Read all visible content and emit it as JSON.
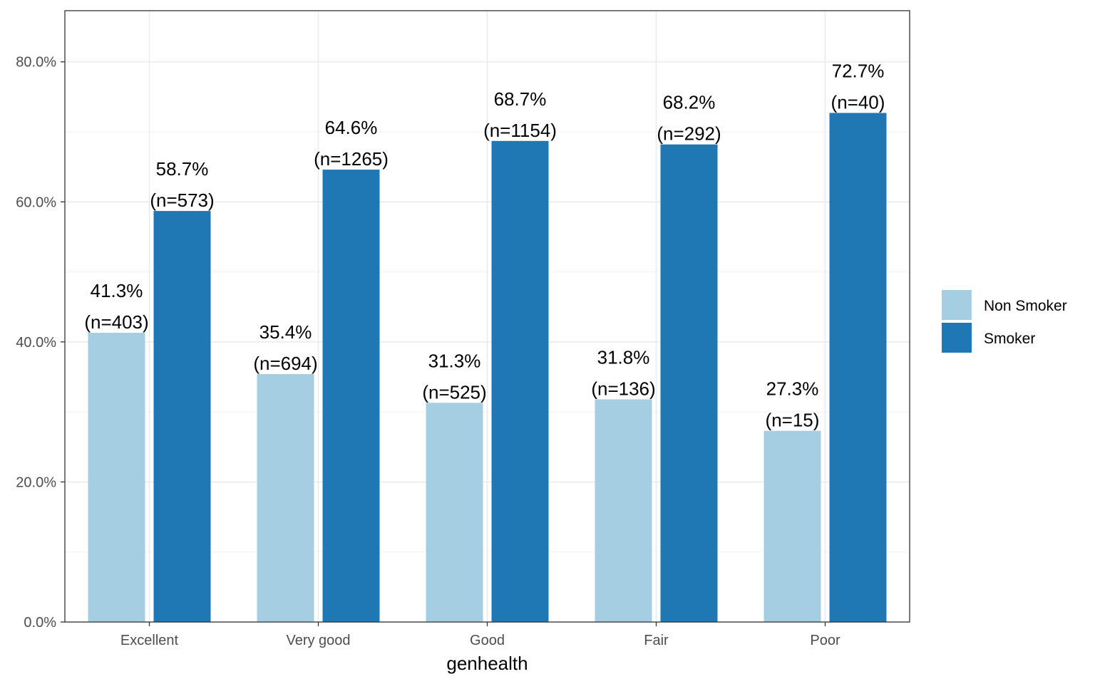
{
  "chart_data": {
    "type": "bar",
    "xlabel": "genhealth",
    "ylabel": "",
    "categories": [
      "Excellent",
      "Very good",
      "Good",
      "Fair",
      "Poor"
    ],
    "series": [
      {
        "name": "Non Smoker",
        "color": "#a6cee3",
        "values": [
          41.3,
          35.4,
          31.3,
          31.8,
          27.3
        ],
        "pct_labels": [
          "41.3%",
          "35.4%",
          "31.3%",
          "31.8%",
          "27.3%"
        ],
        "n_labels": [
          "(n=403)",
          "(n=694)",
          "(n=525)",
          "(n=136)",
          "(n=15)"
        ]
      },
      {
        "name": "Smoker",
        "color": "#1f78b4",
        "values": [
          58.7,
          64.6,
          68.7,
          68.2,
          72.7
        ],
        "pct_labels": [
          "58.7%",
          "64.6%",
          "68.7%",
          "68.2%",
          "72.7%"
        ],
        "n_labels": [
          "(n=573)",
          "(n=1265)",
          "(n=1154)",
          "(n=292)",
          "(n=40)"
        ]
      }
    ],
    "ylim": [
      0,
      87.3
    ],
    "yticks": [
      0,
      20,
      40,
      60,
      80
    ],
    "ytick_labels": [
      "0.0%",
      "20.0%",
      "40.0%",
      "60.0%",
      "80.0%"
    ],
    "grid": true,
    "legend_position": "right"
  }
}
